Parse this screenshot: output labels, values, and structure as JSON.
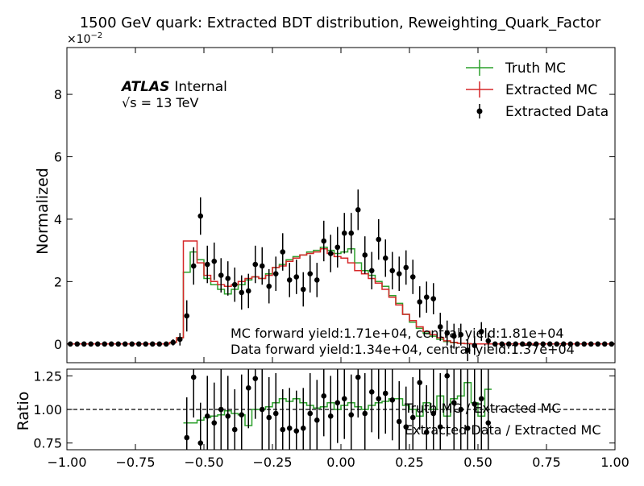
{
  "chart_data": {
    "type": "histogram",
    "title": "1500 GeV quark: Extracted BDT distribution, Reweighting_Quark_Factor",
    "xlabel": "",
    "xlim": [
      -1.0,
      1.0
    ],
    "x_ticks": [
      "−1.00",
      "−0.75",
      "−0.50",
      "−0.25",
      "0.00",
      "0.25",
      "0.50",
      "0.75",
      "1.00"
    ],
    "atlas_label": "ATLAS",
    "atlas_status": "Internal",
    "energy_label": "√s = 13 TeV",
    "yield_mc": "MC forward yield:1.71e+04, central yield:1.81e+04",
    "yield_data": "Data forward yield:1.34e+04, central yield:1.37e+04",
    "bin_edges": [
      -1.0,
      -0.975,
      -0.95,
      -0.925,
      -0.9,
      -0.875,
      -0.85,
      -0.825,
      -0.8,
      -0.775,
      -0.75,
      -0.725,
      -0.7,
      -0.675,
      -0.65,
      -0.625,
      -0.6,
      -0.575,
      -0.55,
      -0.525,
      -0.5,
      -0.475,
      -0.45,
      -0.425,
      -0.4,
      -0.375,
      -0.35,
      -0.325,
      -0.3,
      -0.275,
      -0.25,
      -0.225,
      -0.2,
      -0.175,
      -0.15,
      -0.125,
      -0.1,
      -0.075,
      -0.05,
      -0.025,
      0.0,
      0.025,
      0.05,
      0.075,
      0.1,
      0.125,
      0.15,
      0.175,
      0.2,
      0.225,
      0.25,
      0.275,
      0.3,
      0.325,
      0.35,
      0.375,
      0.4,
      0.425,
      0.45,
      0.475,
      0.5,
      0.525,
      0.55,
      0.575,
      0.6,
      0.625,
      0.65,
      0.675,
      0.7,
      0.725,
      0.75,
      0.775,
      0.8,
      0.825,
      0.85,
      0.875,
      0.9,
      0.925,
      0.95,
      0.975,
      1.0
    ],
    "upper_panel": {
      "ylabel": "Normalized",
      "ylim": [
        -0.6,
        9.5
      ],
      "y_ticks": [
        0,
        2,
        4,
        6,
        8
      ],
      "y_exponent": "×10−2",
      "legend_position": "top-right",
      "series": [
        {
          "name": "Truth MC",
          "color": "#2ca02c",
          "style": "step",
          "values": [
            0,
            0,
            0,
            0,
            0,
            0,
            0,
            0,
            0,
            0,
            0,
            0,
            0,
            0,
            0,
            0.05,
            0.2,
            2.3,
            2.95,
            2.7,
            2.1,
            1.9,
            1.75,
            1.6,
            1.75,
            1.9,
            2.05,
            2.15,
            2.1,
            2.25,
            2.45,
            2.55,
            2.7,
            2.8,
            2.85,
            2.95,
            3.0,
            3.1,
            3.0,
            2.9,
            2.95,
            3.05,
            2.6,
            2.35,
            2.2,
            2.0,
            1.85,
            1.55,
            1.3,
            0.95,
            0.7,
            0.5,
            0.35,
            0.25,
            0.15,
            0.08,
            0.04,
            0.02,
            0.01,
            0,
            0,
            0,
            0,
            0,
            0,
            0,
            0,
            0,
            0,
            0,
            0,
            0,
            0,
            0,
            0,
            0,
            0,
            0,
            0,
            0
          ]
        },
        {
          "name": "Extracted MC",
          "color": "#d62728",
          "style": "step",
          "values": [
            0,
            0,
            0,
            0,
            0,
            0,
            0,
            0,
            0,
            0,
            0,
            0,
            0,
            0,
            0,
            0.05,
            0.2,
            3.3,
            3.3,
            2.6,
            2.2,
            2.0,
            1.9,
            1.85,
            1.9,
            2.0,
            2.1,
            2.15,
            2.1,
            2.2,
            2.45,
            2.5,
            2.65,
            2.75,
            2.85,
            2.9,
            2.95,
            3.05,
            2.9,
            2.8,
            2.75,
            2.6,
            2.35,
            2.25,
            2.1,
            1.95,
            1.75,
            1.5,
            1.25,
            0.95,
            0.75,
            0.55,
            0.4,
            0.3,
            0.2,
            0.1,
            0.05,
            0.02,
            0.01,
            0,
            0,
            0,
            0,
            0,
            0,
            0,
            0,
            0,
            0,
            0,
            0,
            0,
            0,
            0,
            0,
            0,
            0,
            0,
            0,
            0
          ]
        },
        {
          "name": "Extracted Data",
          "color": "#000000",
          "style": "errorbar",
          "values": [
            0,
            0,
            0,
            0,
            0,
            0,
            0,
            0,
            0,
            0,
            0,
            0,
            0,
            0,
            0,
            0.05,
            0.15,
            0.9,
            2.5,
            4.1,
            2.55,
            2.65,
            2.2,
            2.1,
            1.9,
            1.65,
            1.7,
            2.55,
            2.5,
            1.85,
            2.25,
            2.95,
            2.05,
            2.15,
            1.75,
            2.25,
            2.05,
            3.3,
            2.9,
            3.1,
            3.55,
            3.55,
            4.3,
            2.85,
            2.35,
            3.35,
            2.75,
            2.35,
            2.25,
            2.45,
            2.15,
            1.35,
            1.5,
            1.45,
            0.55,
            0.35,
            0.25,
            0.3,
            -0.2,
            -0.05,
            0.4,
            0.1,
            0,
            0,
            0,
            0,
            0,
            0,
            0,
            0,
            0,
            0,
            0,
            0,
            0,
            0,
            0,
            0,
            0,
            0
          ],
          "errors": [
            0,
            0,
            0,
            0,
            0,
            0,
            0,
            0,
            0,
            0,
            0,
            0,
            0,
            0,
            0,
            0.1,
            0.2,
            0.5,
            0.6,
            0.6,
            0.6,
            0.6,
            0.55,
            0.55,
            0.55,
            0.55,
            0.55,
            0.6,
            0.6,
            0.55,
            0.55,
            0.6,
            0.55,
            0.55,
            0.55,
            0.6,
            0.55,
            0.65,
            0.6,
            0.65,
            0.65,
            0.65,
            0.65,
            0.6,
            0.6,
            0.65,
            0.6,
            0.6,
            0.55,
            0.55,
            0.55,
            0.5,
            0.5,
            0.5,
            0.45,
            0.4,
            0.4,
            0.35,
            0.35,
            0.3,
            0.3,
            0.25,
            0,
            0,
            0,
            0,
            0,
            0,
            0,
            0,
            0,
            0,
            0,
            0,
            0,
            0,
            0,
            0,
            0,
            0
          ]
        }
      ]
    },
    "lower_panel": {
      "ylabel": "Ratio",
      "ylim": [
        0.7,
        1.3
      ],
      "y_ticks": [
        "0.75",
        "1.00",
        "1.25"
      ],
      "reference_line": 1.0,
      "labels": [
        "Truth MC / Extracted MC",
        "Extracted Data / Extracted MC"
      ],
      "series": [
        {
          "name": "Truth MC / Extracted MC",
          "color": "#2ca02c",
          "style": "step",
          "values": [
            null,
            null,
            null,
            null,
            null,
            null,
            null,
            null,
            null,
            null,
            null,
            null,
            null,
            null,
            null,
            null,
            null,
            0.9,
            0.9,
            0.92,
            0.94,
            0.95,
            0.96,
            0.99,
            0.97,
            0.96,
            0.88,
            1.0,
            1.0,
            1.02,
            1.05,
            1.08,
            1.06,
            1.08,
            1.05,
            1.03,
            1.01,
            1.02,
            1.05,
            1.0,
            1.03,
            1.05,
            1.02,
            1.0,
            1.03,
            1.05,
            1.06,
            1.08,
            1.08,
            1.03,
            1.0,
            0.95,
            1.05,
            1.0,
            1.1,
            0.95,
            1.08,
            1.1,
            1.2,
            1.05,
            0.95,
            1.15,
            null,
            null,
            null,
            null,
            null,
            null,
            null,
            null,
            null,
            null,
            null,
            null,
            null,
            null,
            null,
            null,
            null,
            null
          ]
        },
        {
          "name": "Extracted Data / Extracted MC",
          "color": "#000000",
          "style": "errorbar",
          "values": [
            null,
            null,
            null,
            null,
            null,
            null,
            null,
            null,
            null,
            null,
            null,
            null,
            null,
            null,
            null,
            null,
            null,
            0.79,
            1.24,
            0.75,
            0.95,
            0.9,
            1.0,
            0.95,
            0.85,
            0.96,
            1.16,
            1.23,
            1.0,
            0.94,
            0.97,
            0.85,
            0.86,
            0.84,
            0.86,
            0.97,
            0.92,
            1.1,
            0.95,
            1.05,
            1.08,
            0.96,
            1.24,
            0.97,
            1.13,
            1.08,
            1.12,
            1.07,
            0.91,
            0.87,
            0.94,
            1.2,
            0.83,
            0.97,
            0.87,
            1.25,
            1.05,
            1.0,
            0.86,
            1.04,
            1.08,
            0.9,
            null,
            null,
            null,
            null,
            null,
            null,
            null,
            null,
            null,
            null,
            null,
            null,
            null,
            null,
            null,
            null,
            null,
            null
          ],
          "errors": [
            null,
            null,
            null,
            null,
            null,
            null,
            null,
            null,
            null,
            null,
            null,
            null,
            null,
            null,
            null,
            null,
            null,
            0.3,
            0.3,
            0.3,
            0.3,
            0.3,
            0.3,
            0.3,
            0.3,
            0.3,
            0.3,
            0.3,
            0.3,
            0.3,
            0.3,
            0.3,
            0.3,
            0.3,
            0.3,
            0.3,
            0.3,
            0.3,
            0.3,
            0.3,
            0.3,
            0.3,
            0.3,
            0.3,
            0.3,
            0.3,
            0.3,
            0.3,
            0.3,
            0.3,
            0.3,
            0.35,
            0.35,
            0.4,
            0.4,
            0.45,
            0.45,
            0.5,
            0.5,
            0.5,
            0.5,
            0.5,
            null,
            null,
            null,
            null,
            null,
            null,
            null,
            null,
            null,
            null,
            null,
            null,
            null,
            null,
            null,
            null,
            null,
            null
          ]
        }
      ]
    }
  }
}
